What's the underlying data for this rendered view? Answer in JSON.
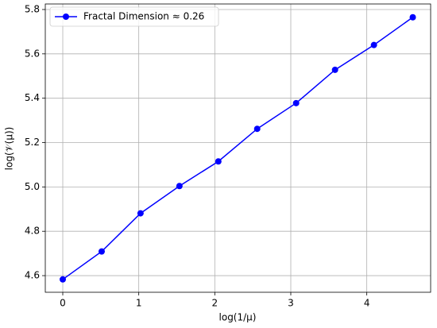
{
  "chart_data": {
    "type": "line",
    "xlabel": "log(1/μ)",
    "ylabel": "log(𝒱(μ))",
    "x": [
      0,
      0.512,
      1.023,
      1.535,
      2.047,
      2.558,
      3.07,
      3.582,
      4.094,
      4.605
    ],
    "series": [
      {
        "name": "Fractal Dimension ≈ 0.26",
        "color": "#0000ff",
        "values": [
          4.583,
          4.709,
          4.881,
          5.004,
          5.115,
          5.262,
          5.378,
          5.528,
          5.64,
          5.765
        ]
      }
    ],
    "xlim": [
      -0.23,
      4.84
    ],
    "xticks": [
      0,
      1,
      2,
      3,
      4
    ],
    "ylim": [
      4.525,
      5.825
    ],
    "yticks": [
      4.6,
      4.8,
      {
        "value": 5,
        "label": "5.0"
      },
      5.2,
      5.4,
      5.6,
      5.8
    ],
    "grid": true,
    "legend": "upper left"
  }
}
